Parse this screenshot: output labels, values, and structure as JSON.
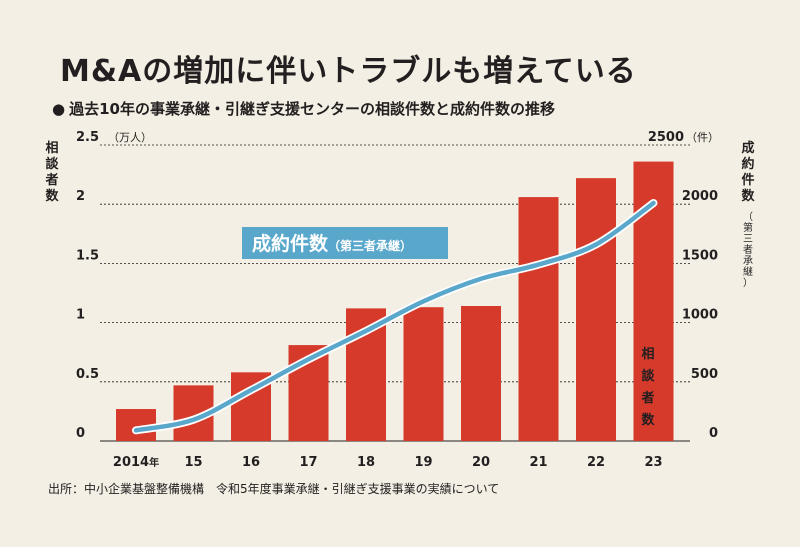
{
  "title": "M&Aの増加に伴いトラブルも増えている",
  "subtitle": "過去10年の事業承継・引継ぎ支援センターの相談件数と成約件数の推移",
  "source": "出所：中小企業基盤整備機構　令和5年度事業承継・引継ぎ支援事業の実績について",
  "colors": {
    "background": "#f3efe4",
    "bar": "#d63a2a",
    "line": "#5aa7cc",
    "line_label_bg": "#5aa7cc",
    "text": "#231f20"
  },
  "chart_data": {
    "type": "bar+line",
    "categories": [
      "2014年",
      "15",
      "16",
      "17",
      "18",
      "19",
      "20",
      "21",
      "22",
      "23"
    ],
    "left_axis": {
      "label": "相談者数",
      "unit": "（万人）",
      "ticks": [
        "0",
        "0.5",
        "1",
        "1.5",
        "2",
        "2.5"
      ],
      "range": [
        0,
        2.5
      ]
    },
    "right_axis": {
      "label": "成約件数",
      "sub_label": "（第三者承継）",
      "unit": "（件）",
      "ticks": [
        "0",
        "500",
        "1000",
        "1500",
        "2000",
        "2500"
      ],
      "range": [
        0,
        2500
      ]
    },
    "series": [
      {
        "name": "相談者数",
        "type": "bar",
        "axis": "left",
        "values": [
          0.27,
          0.47,
          0.58,
          0.81,
          1.12,
          1.13,
          1.14,
          2.06,
          2.22,
          2.36
        ]
      },
      {
        "name": "成約件数",
        "sub_name": "（第三者承継）",
        "type": "line",
        "axis": "right",
        "values": [
          90,
          180,
          430,
          690,
          930,
          1180,
          1370,
          1490,
          1660,
          2010
        ]
      }
    ],
    "grid": true,
    "grid_style": "dashed"
  }
}
